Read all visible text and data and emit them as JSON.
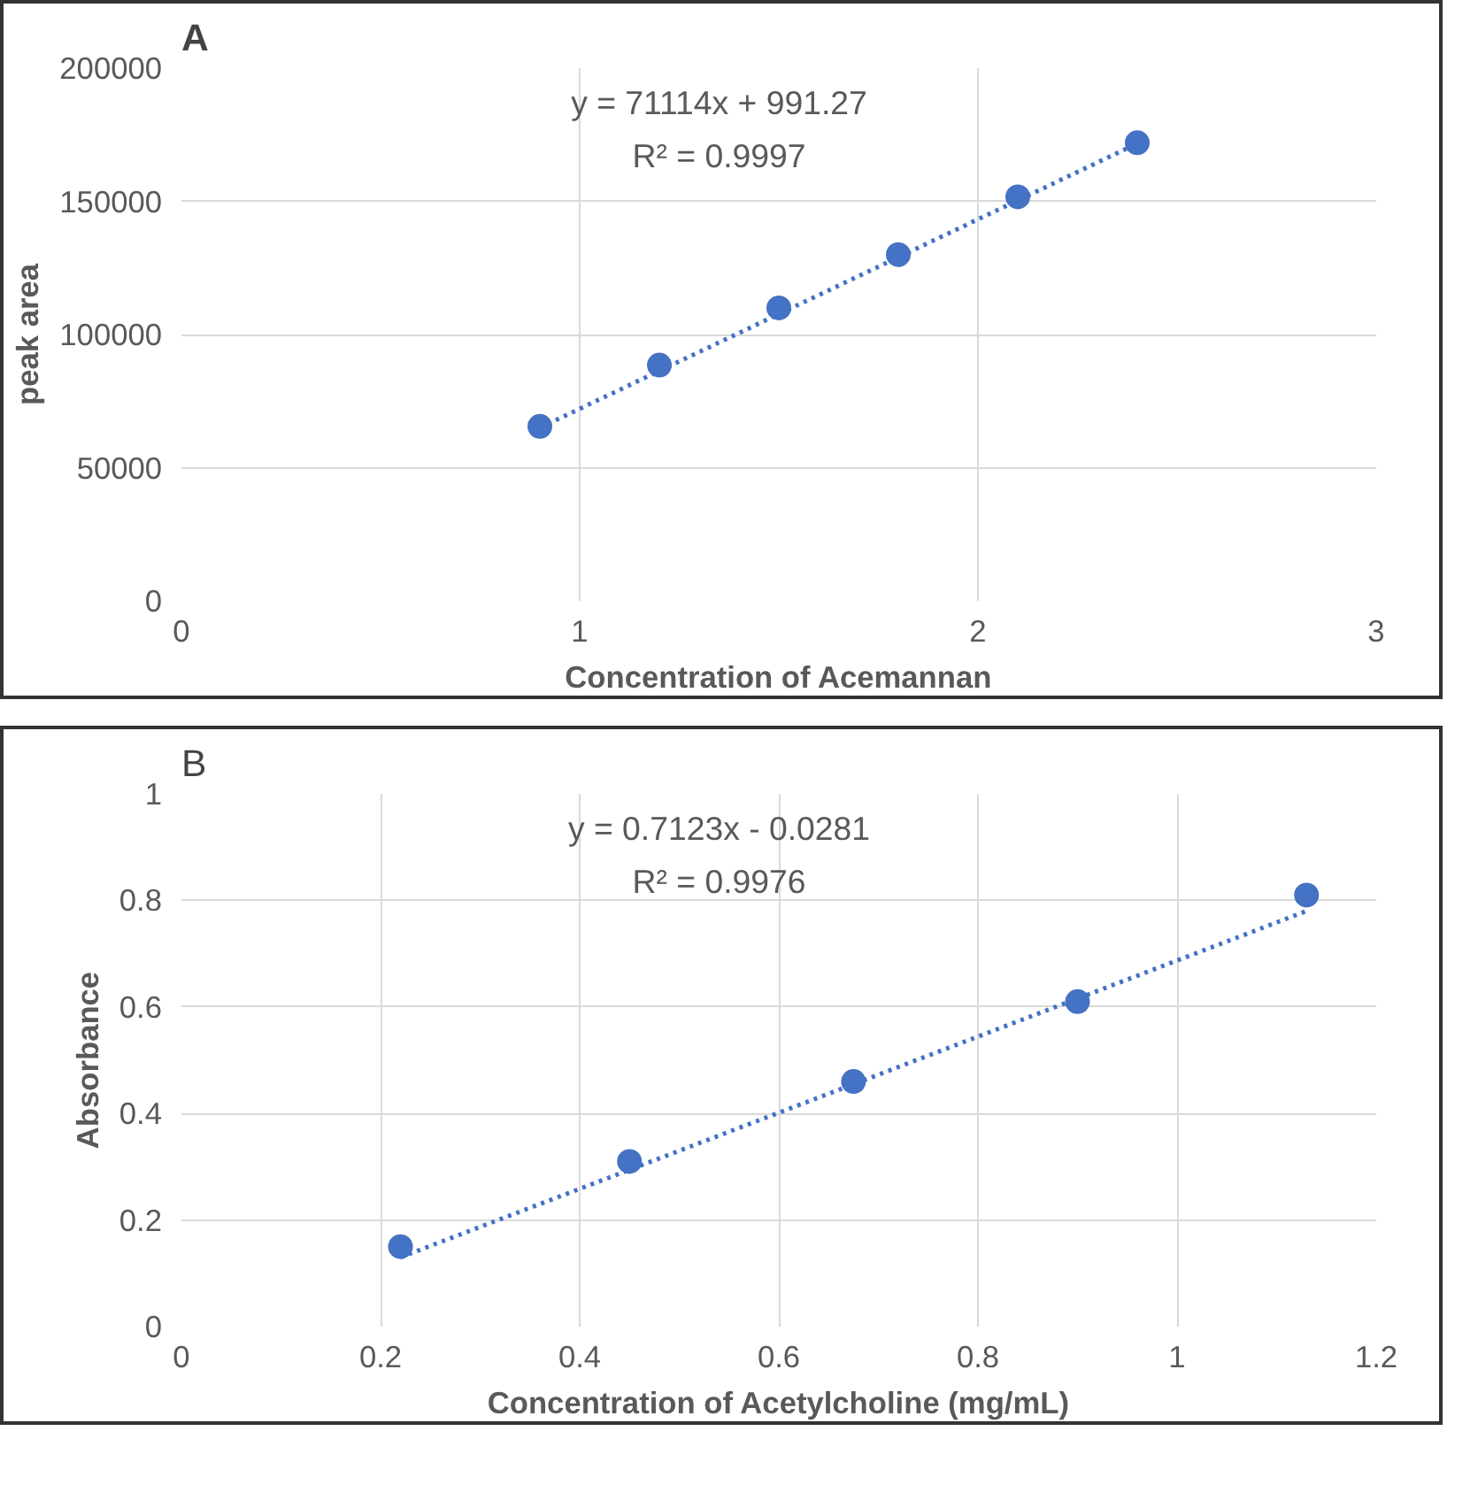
{
  "chart_data": [
    {
      "type": "scatter",
      "title": "A",
      "xlabel": "Concentration of Acemannan",
      "ylabel": "peak area",
      "x": [
        0.9,
        1.2,
        1.5,
        1.8,
        2.1,
        2.4
      ],
      "series": [
        {
          "color": "#4472c4",
          "values": [
            65500,
            88500,
            110000,
            130000,
            151700,
            172000
          ],
          "marker": "circle"
        },
        {
          "type": "line",
          "color": "#4472c4",
          "x": [
            0.9,
            2.4
          ],
          "values": [
            65000,
            171700
          ],
          "line_style": "dotted",
          "marker": "none"
        }
      ],
      "xlim": [
        0,
        3
      ],
      "xticks": [
        0,
        1,
        2,
        3
      ],
      "ylim": [
        0,
        200000
      ],
      "yticks": [
        0,
        50000,
        100000,
        150000,
        200000
      ],
      "grid": true,
      "annotations": [
        "y = 71114x + 991.27",
        "R² = 0.9997"
      ]
    },
    {
      "type": "scatter",
      "title": "B",
      "xlabel": "Concentration of Acetylcholine (mg/mL)",
      "ylabel": "Absorbance",
      "x": [
        0.22,
        0.45,
        0.675,
        0.9,
        1.13
      ],
      "series": [
        {
          "color": "#4472c4",
          "values": [
            0.15,
            0.31,
            0.46,
            0.61,
            0.81
          ],
          "marker": "circle"
        },
        {
          "type": "line",
          "color": "#4472c4",
          "x": [
            0.22,
            1.13
          ],
          "values": [
            0.13,
            0.78
          ],
          "line_style": "dotted",
          "marker": "none"
        }
      ],
      "xlim": [
        0,
        1.2
      ],
      "xticks": [
        0,
        0.2,
        0.4,
        0.6,
        0.8,
        1,
        1.2
      ],
      "ylim": [
        0,
        1
      ],
      "yticks": [
        0,
        0.2,
        0.4,
        0.6,
        0.8,
        1
      ],
      "grid": true,
      "annotations": [
        "y = 0.7123x - 0.0281",
        "R² = 0.9976"
      ]
    }
  ]
}
